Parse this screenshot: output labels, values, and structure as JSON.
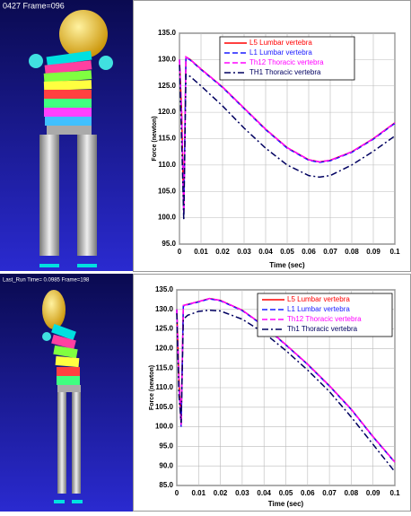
{
  "left_panels": [
    {
      "label": "0427  Frame=096"
    },
    {
      "label": "Last_Run  Time= 0.0985 Frame=198"
    }
  ],
  "chart_data": [
    {
      "type": "line",
      "x_label": "Time (sec)",
      "y_label": "Force (newton)",
      "grid": true,
      "legend": "upper center",
      "x": [
        0,
        0.001,
        0.002,
        0.003,
        0.005,
        0.01,
        0.02,
        0.03,
        0.04,
        0.05,
        0.06,
        0.065,
        0.07,
        0.08,
        0.09,
        0.1
      ],
      "xlim": [
        0,
        0.1
      ],
      "xticks": [
        0,
        0.01,
        0.02,
        0.03,
        0.04,
        0.05,
        0.06,
        0.07,
        0.08,
        0.09,
        0.1
      ],
      "ylim": [
        95,
        135
      ],
      "yticks": [
        {
          "value": 95,
          "label": "95.0"
        },
        {
          "value": 100,
          "label": "100.0"
        },
        {
          "value": 105,
          "label": "105.0"
        },
        {
          "value": 110,
          "label": "110.0"
        },
        {
          "value": 115,
          "label": "115.0"
        },
        {
          "value": 120,
          "label": "120.0"
        },
        {
          "value": 125,
          "label": "125.0"
        },
        {
          "value": 130,
          "label": "130.0"
        },
        {
          "value": 135,
          "label": "135.0"
        }
      ],
      "series": [
        {
          "name": "L5 Lumbar vertebra",
          "color": "#ff0000",
          "style": "solid",
          "values": [
            130,
            120,
            101,
            130.5,
            130,
            128.2,
            124.8,
            120.8,
            116.8,
            113.3,
            111,
            110.6,
            110.9,
            112.5,
            115,
            118
          ]
        },
        {
          "name": "L1 Lumbar vertebra",
          "color": "#1a1aff",
          "style": "dash",
          "values": [
            130,
            119,
            100.5,
            130.4,
            129.9,
            128.1,
            124.7,
            120.7,
            116.7,
            113.2,
            110.9,
            110.5,
            110.8,
            112.4,
            114.9,
            117.9
          ]
        },
        {
          "name": "Th12 Thoracic vertebra",
          "color": "#ff00ff",
          "style": "dash",
          "values": [
            130,
            120,
            101,
            130.5,
            130,
            128.2,
            124.8,
            120.8,
            116.8,
            113.3,
            111,
            110.6,
            110.9,
            112.5,
            115,
            118
          ]
        },
        {
          "name": "TH1 Thoracic vertebra",
          "color": "#000060",
          "style": "dashdot",
          "values": [
            129,
            115,
            99.5,
            127.2,
            126.8,
            125,
            121.2,
            117,
            113.2,
            110,
            108,
            107.7,
            108,
            110,
            112.6,
            115.5
          ]
        }
      ]
    },
    {
      "type": "line",
      "x_label": "Time (sec)",
      "y_label": "Force (newton)",
      "grid": true,
      "legend": "upper right",
      "x": [
        0,
        0.001,
        0.002,
        0.003,
        0.005,
        0.01,
        0.015,
        0.02,
        0.03,
        0.04,
        0.05,
        0.06,
        0.07,
        0.08,
        0.09,
        0.1
      ],
      "xlim": [
        0,
        0.1
      ],
      "xticks": [
        0,
        0.01,
        0.02,
        0.03,
        0.04,
        0.05,
        0.06,
        0.07,
        0.08,
        0.09,
        0.1
      ],
      "ylim": [
        85,
        135
      ],
      "yticks": [
        {
          "value": 85,
          "label": "85.0"
        },
        {
          "value": 90,
          "label": "90.0"
        },
        {
          "value": 95,
          "label": "95.0"
        },
        {
          "value": 100,
          "label": "100.0"
        },
        {
          "value": 105,
          "label": "105.0"
        },
        {
          "value": 110,
          "label": "110.0"
        },
        {
          "value": 115,
          "label": "115.0"
        },
        {
          "value": 120,
          "label": "120.0"
        },
        {
          "value": 125,
          "label": "125.0"
        },
        {
          "value": 130,
          "label": "130.0"
        },
        {
          "value": 135,
          "label": "135.0"
        }
      ],
      "series": [
        {
          "name": "L5 Lumbar vertebra",
          "color": "#ff0000",
          "style": "solid",
          "values": [
            130,
            112,
            100.5,
            131,
            131.3,
            132,
            132.8,
            132.3,
            129.8,
            125.8,
            121,
            116,
            110.5,
            104.5,
            97.5,
            91
          ]
        },
        {
          "name": "L1 Lumbar vertebra",
          "color": "#1a1aff",
          "style": "dash",
          "values": [
            130,
            111,
            100,
            130.9,
            131.2,
            131.9,
            132.7,
            132.2,
            129.7,
            125.7,
            120.9,
            115.9,
            110.4,
            104.4,
            97.4,
            90.9
          ]
        },
        {
          "name": "Th12 Thoracic vertebra",
          "color": "#ff00ff",
          "style": "dash",
          "values": [
            130,
            112,
            100.5,
            131,
            131.3,
            132,
            132.8,
            132.3,
            129.8,
            125.8,
            121,
            116,
            110.5,
            104.5,
            97.5,
            91
          ]
        },
        {
          "name": "Th1 Thoracic vertebra",
          "color": "#000060",
          "style": "dashdot",
          "values": [
            129,
            108,
            101,
            127.5,
            128.5,
            129.5,
            129.8,
            129.6,
            127.5,
            124,
            119.5,
            114.5,
            109,
            102.5,
            95.5,
            88.5
          ]
        }
      ]
    }
  ]
}
